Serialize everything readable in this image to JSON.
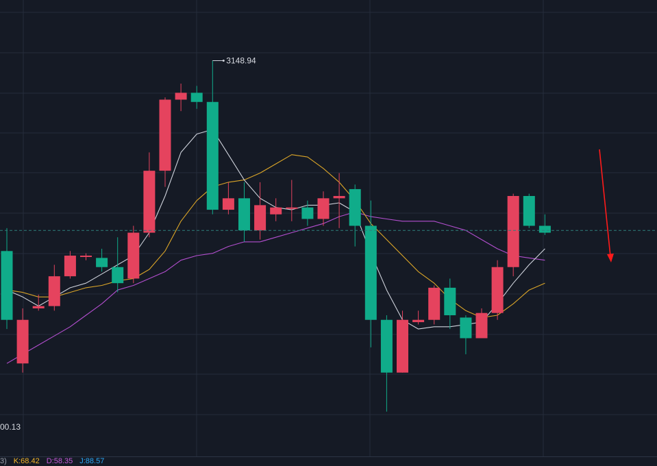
{
  "chart_data": {
    "type": "candlestick",
    "y_range": [
      2992,
      3162
    ],
    "candles": [
      {
        "open": 3066,
        "close": 3036,
        "high": 3076,
        "low": 3032
      },
      {
        "open": 3017,
        "close": 3036,
        "high": 3041,
        "low": 3013
      },
      {
        "open": 3041,
        "close": 3042,
        "high": 3047,
        "low": 3040
      },
      {
        "open": 3042,
        "close": 3055,
        "high": 3060,
        "low": 3040
      },
      {
        "open": 3055,
        "close": 3064,
        "high": 3066,
        "low": 3054
      },
      {
        "open": 3064,
        "close": 3064,
        "high": 3065,
        "low": 3062
      },
      {
        "open": 3063,
        "close": 3059,
        "high": 3067,
        "low": 3057
      },
      {
        "open": 3059,
        "close": 3052,
        "high": 3072,
        "low": 3048
      },
      {
        "open": 3054,
        "close": 3074,
        "high": 3077,
        "low": 3052
      },
      {
        "open": 3074,
        "close": 3101,
        "high": 3109,
        "low": 3072
      },
      {
        "open": 3101,
        "close": 3132,
        "high": 3133,
        "low": 3094
      },
      {
        "open": 3132,
        "close": 3135,
        "high": 3139,
        "low": 3127
      },
      {
        "open": 3135,
        "close": 3131,
        "high": 3138,
        "low": 3128
      },
      {
        "open": 3131,
        "close": 3084,
        "high": 3149,
        "low": 3082
      },
      {
        "open": 3084,
        "close": 3089,
        "high": 3096,
        "low": 3082
      },
      {
        "open": 3089,
        "close": 3075,
        "high": 3096,
        "low": 3070
      },
      {
        "open": 3075,
        "close": 3086,
        "high": 3096,
        "low": 3071
      },
      {
        "open": 3082,
        "close": 3085,
        "high": 3089,
        "low": 3079
      },
      {
        "open": 3085,
        "close": 3085,
        "high": 3097,
        "low": 3079
      },
      {
        "open": 3085,
        "close": 3080,
        "high": 3088,
        "low": 3077
      },
      {
        "open": 3080,
        "close": 3089,
        "high": 3092,
        "low": 3077
      },
      {
        "open": 3089,
        "close": 3090,
        "high": 3100,
        "low": 3076
      },
      {
        "open": 3093,
        "close": 3077,
        "high": 3095,
        "low": 3068
      },
      {
        "open": 3077,
        "close": 3036,
        "high": 3088,
        "low": 3024
      },
      {
        "open": 3036,
        "close": 3013,
        "high": 3038,
        "low": 2996
      },
      {
        "open": 3013,
        "close": 3036,
        "high": 3040,
        "low": 3013
      },
      {
        "open": 3035,
        "close": 3036,
        "high": 3040,
        "low": 3034
      },
      {
        "open": 3036,
        "close": 3050,
        "high": 3051,
        "low": 3034
      },
      {
        "open": 3050,
        "close": 3038,
        "high": 3054,
        "low": 3032
      },
      {
        "open": 3037,
        "close": 3028,
        "high": 3038,
        "low": 3021
      },
      {
        "open": 3028,
        "close": 3039,
        "high": 3041,
        "low": 3028
      },
      {
        "open": 3039,
        "close": 3059,
        "high": 3062,
        "low": 3036
      },
      {
        "open": 3059,
        "close": 3090,
        "high": 3091,
        "low": 3055
      },
      {
        "open": 3090,
        "close": 3077,
        "high": 3091,
        "low": 3076
      },
      {
        "open": 3077,
        "close": 3074,
        "high": 3082,
        "low": 3073
      }
    ],
    "ma_white": [
      3049,
      3046,
      3042,
      3046,
      3050,
      3052,
      3056,
      3060,
      3064,
      3074,
      3090,
      3109,
      3117,
      3119,
      3108,
      3097,
      3089,
      3085,
      3084,
      3086,
      3086,
      3087,
      3083,
      3065,
      3049,
      3036,
      3032,
      3033,
      3033,
      3034,
      3035,
      3043,
      3052,
      3060,
      3067
    ],
    "ma_yellow": [
      3049,
      3048,
      3046,
      3046,
      3048,
      3050,
      3051,
      3053,
      3054,
      3058,
      3066,
      3079,
      3088,
      3094,
      3096,
      3097,
      3100,
      3104,
      3108,
      3107,
      3102,
      3096,
      3088,
      3078,
      3071,
      3064,
      3057,
      3052,
      3045,
      3040,
      3037,
      3038,
      3043,
      3049,
      3052
    ],
    "ma_purple": [
      3017,
      3021,
      3025,
      3029,
      3033,
      3038,
      3043,
      3049,
      3051,
      3054,
      3057,
      3062,
      3064,
      3065,
      3068,
      3070,
      3070,
      3072,
      3074,
      3076,
      3078,
      3081,
      3083,
      3081,
      3080,
      3079,
      3079,
      3079,
      3077,
      3075,
      3071,
      3067,
      3064,
      3063,
      3062
    ],
    "reference_level": 3075,
    "high_label": "3148.94",
    "low_label": "00.13",
    "indicators": [
      {
        "label": "3)",
        "color": "#9aa0ac"
      },
      {
        "label": "K:68.42",
        "color": "#f3b52b"
      },
      {
        "label": "D:58.35",
        "color": "#c45bd8"
      },
      {
        "label": "J:88.57",
        "color": "#2aa6f5"
      }
    ],
    "colors": {
      "background": "#151a25",
      "grid": "#252c3a",
      "up": "#e5435e",
      "down": "#10ac8a",
      "ma_white": "#cfd3dc",
      "ma_yellow": "#dca628",
      "ma_purple": "#b44fd0",
      "reference": "#2f7f7c",
      "annotation_arrow": "#ff1a1a"
    },
    "grid": true
  }
}
